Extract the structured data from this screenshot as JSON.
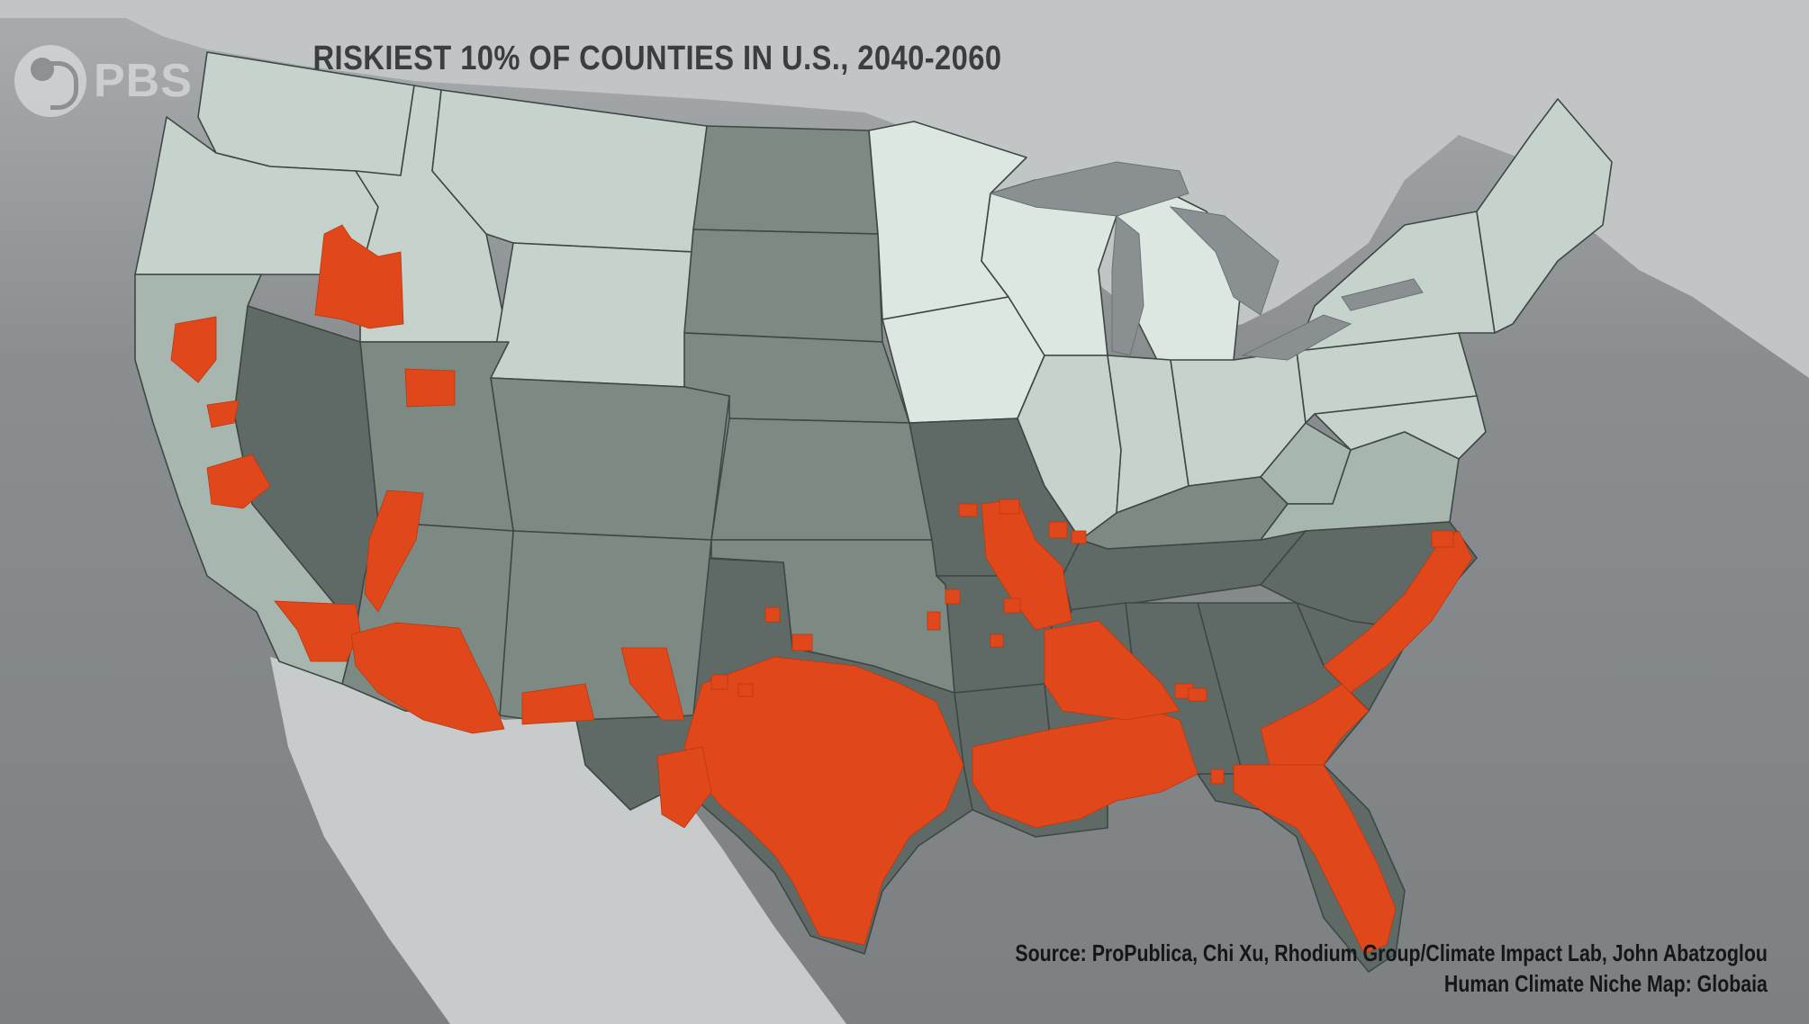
{
  "title": "RISKIEST 10% OF COUNTIES IN U.S., 2040-2060",
  "logo": {
    "text": "PBS",
    "icon": "pbs-head-icon"
  },
  "source": {
    "line1": "Source: ProPublica, Chi Xu, Rhodium Group/Climate Impact Lab, John Abatzoglou",
    "line2": "Human Climate Niche Map: Globaia"
  },
  "colors": {
    "background": "#7d8082",
    "land_outside": "#aeb2b4",
    "canada": "#c2c5c6",
    "mexico": "#c8cbcc",
    "lakes": "#8a8f92",
    "risk_lowest": "#dde7e1",
    "risk_low": "#c6d3cc",
    "risk_mid": "#a7b6ae",
    "risk_high": "#7c8a83",
    "risk_highest": "#5f6a66",
    "riskiest_counties": "#e0481b",
    "borders": "#3f4744"
  },
  "map_features": {
    "country": "United States",
    "region_shown": "Contiguous United States",
    "highlight_meaning": "Riskiest 10% of counties",
    "period": "2040-2060",
    "highlighted_regions": [
      "Southern Idaho",
      "Central California",
      "Western Arizona",
      "Southern Arizona",
      "Southern New Mexico",
      "Texas",
      "Louisiana",
      "Mississippi",
      "Alabama",
      "Arkansas",
      "Southern Missouri",
      "Florida",
      "Georgia coast",
      "South Carolina coast",
      "North Carolina coast"
    ]
  }
}
